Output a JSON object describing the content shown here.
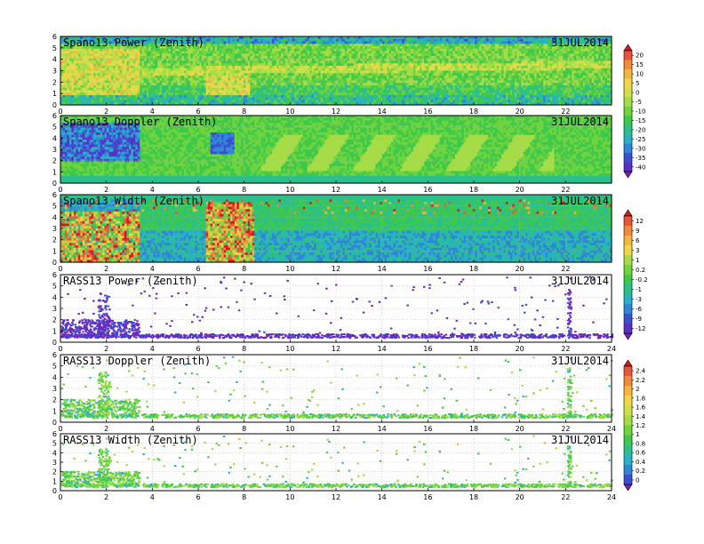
{
  "chart_data": [
    {
      "type": "heatmap",
      "title": "Spano13 Power (Zenith)",
      "date": "31JUL2014",
      "xlim": [
        0,
        24
      ],
      "ylim": [
        0,
        6
      ],
      "xticks": [
        "0",
        "2",
        "4",
        "6",
        "8",
        "10",
        "12",
        "14",
        "16",
        "18",
        "20",
        "22"
      ],
      "yticks": [
        "0",
        "1",
        "2",
        "3",
        "4",
        "5",
        "6"
      ],
      "colorbar": "spano",
      "grid": true
    },
    {
      "type": "heatmap",
      "title": "Spano13 Doppler (Zenith)",
      "date": "31JUL2014",
      "xlim": [
        0,
        24
      ],
      "ylim": [
        0,
        6
      ],
      "xticks": [
        "0",
        "2",
        "4",
        "6",
        "8",
        "10",
        "12",
        "14",
        "16",
        "18",
        "20",
        "22"
      ],
      "yticks": [
        "0",
        "1",
        "2",
        "3",
        "4",
        "5",
        "6"
      ],
      "colorbar": "spano",
      "grid": true
    },
    {
      "type": "heatmap",
      "title": "Spano13 Width (Zenith)",
      "date": "31JUL2014",
      "xlim": [
        0,
        24
      ],
      "ylim": [
        0,
        6
      ],
      "xticks": [
        "0",
        "2",
        "4",
        "6",
        "8",
        "10",
        "12",
        "14",
        "16",
        "18",
        "20",
        "22"
      ],
      "yticks": [
        "0",
        "1",
        "2",
        "3",
        "4",
        "5",
        "6"
      ],
      "colorbar": "mid",
      "grid": true
    },
    {
      "type": "scatter",
      "title": "RASS13 Power (Zenith)",
      "date": "31JUL2014",
      "xlim": [
        0,
        24
      ],
      "ylim": [
        0,
        6
      ],
      "xticks": [
        "0",
        "2",
        "4",
        "6",
        "8",
        "10",
        "12",
        "14",
        "16",
        "18",
        "20",
        "22",
        "24"
      ],
      "yticks": [
        "0",
        "1",
        "2",
        "3",
        "4",
        "5",
        "6"
      ],
      "colorbar": "mid",
      "grid": true
    },
    {
      "type": "scatter",
      "title": "RASS13 Doppler (Zenith)",
      "date": "31JUL2014",
      "xlim": [
        0,
        24
      ],
      "ylim": [
        0,
        6
      ],
      "xticks": [
        "0",
        "2",
        "4",
        "6",
        "8",
        "10",
        "12",
        "14",
        "16",
        "18",
        "20",
        "22",
        "24"
      ],
      "yticks": [
        "0",
        "1",
        "2",
        "3",
        "4",
        "5",
        "6"
      ],
      "colorbar": "rass",
      "grid": true
    },
    {
      "type": "scatter",
      "title": "RASS13 Width (Zenith)",
      "date": "31JUL2014",
      "xlim": [
        0,
        24
      ],
      "ylim": [
        0,
        6
      ],
      "xticks": [
        "0",
        "2",
        "4",
        "6",
        "8",
        "10",
        "12",
        "14",
        "16",
        "18",
        "20",
        "22",
        "24"
      ],
      "yticks": [
        "0",
        "1",
        "2",
        "3",
        "4",
        "5",
        "6"
      ],
      "colorbar": "rass",
      "grid": true
    }
  ],
  "colorbars": {
    "spano": {
      "labels": [
        "20",
        "15",
        "10",
        "5",
        "0",
        "-5",
        "-10",
        "-15",
        "-20",
        "-25",
        "-30",
        "-35",
        "-40"
      ],
      "colors": [
        "#d7191c",
        "#e8553a",
        "#f08a3c",
        "#f4b63f",
        "#f0d648",
        "#cfe04a",
        "#a6dc45",
        "#6fd43e",
        "#3ec94a",
        "#2cbf8c",
        "#28b2c8",
        "#2f86d6",
        "#3b4fd0",
        "#5a2fc4",
        "#7a22b8"
      ]
    },
    "mid": {
      "labels": [
        "12",
        "9",
        "6",
        "3",
        "1",
        "0.2",
        "-0.2",
        "-1",
        "-3",
        "-6",
        "-9",
        "-12"
      ],
      "colors": [
        "#d7191c",
        "#e8553a",
        "#f08a3c",
        "#f4b63f",
        "#f0d648",
        "#a6dc45",
        "#6fd43e",
        "#3ec94a",
        "#2cbf8c",
        "#28b2c8",
        "#2f86d6",
        "#3b4fd0",
        "#5a2fc4",
        "#7a22b8"
      ]
    },
    "rass": {
      "labels": [
        "2.4",
        "2.2",
        "2",
        "1.8",
        "1.6",
        "1.4",
        "1.2",
        "1",
        "0.8",
        "0.6",
        "0.4",
        "0.2",
        "0"
      ],
      "colors": [
        "#d7191c",
        "#e8553a",
        "#f08a3c",
        "#f4b63f",
        "#f0d648",
        "#cfe04a",
        "#a6dc45",
        "#6fd43e",
        "#3ec94a",
        "#2cbf8c",
        "#28b2c8",
        "#2f86d6",
        "#3b4fd0",
        "#7a22b8"
      ]
    }
  }
}
